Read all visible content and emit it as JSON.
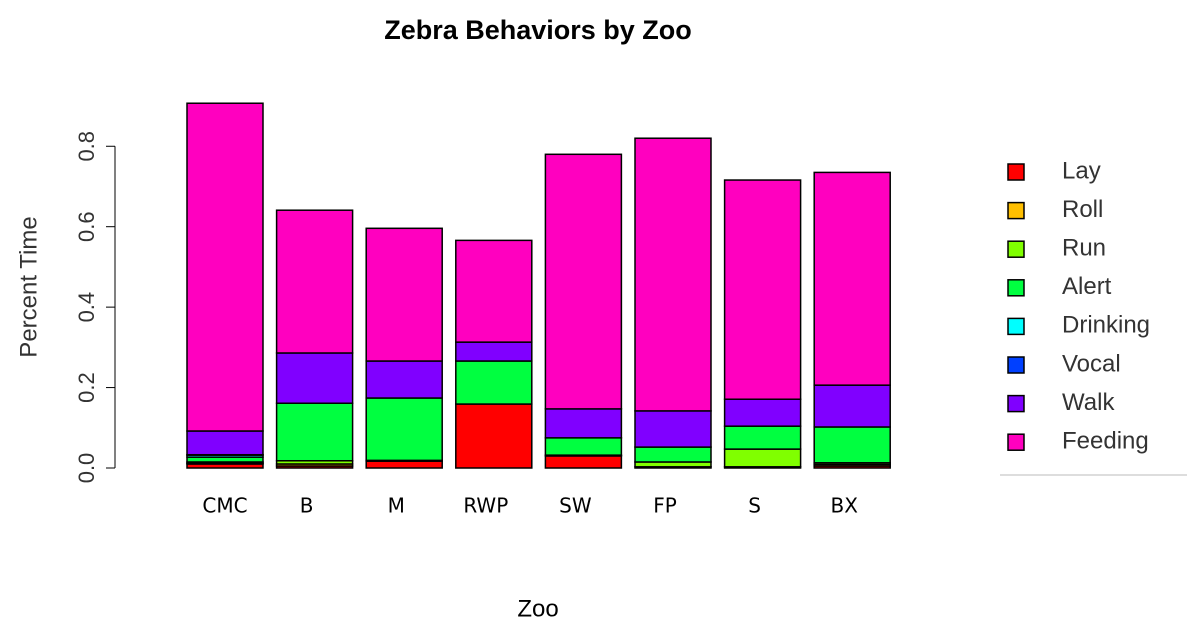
{
  "chart_data": {
    "type": "stacked_bar",
    "title": "Zebra Behaviors by Zoo",
    "x_label": "Zoo",
    "y_label": "Percent Time",
    "categories": [
      "CMC",
      "B",
      "M",
      "RWP",
      "SW",
      "FP",
      "S",
      "BX"
    ],
    "series": [
      {
        "name": "Lay",
        "color": "#ff0000",
        "values": [
          0.01,
          0.005,
          0.017,
          0.159,
          0.03,
          0.003,
          0.003,
          0.005
        ]
      },
      {
        "name": "Roll",
        "color": "#ffbf00",
        "values": [
          0.002,
          0.005,
          0.002,
          0,
          0.002,
          0,
          0,
          0.004
        ]
      },
      {
        "name": "Run",
        "color": "#80ff00",
        "values": [
          0.003,
          0.008,
          0,
          0,
          0,
          0.012,
          0.044,
          0.004
        ]
      },
      {
        "name": "Alert",
        "color": "#00ff40",
        "values": [
          0.012,
          0.143,
          0.155,
          0.107,
          0.043,
          0.037,
          0.057,
          0.089
        ]
      },
      {
        "name": "Drinking",
        "color": "#00ffff",
        "values": [
          0.005,
          0,
          0,
          0,
          0,
          0,
          0,
          0
        ]
      },
      {
        "name": "Vocal",
        "color": "#0040ff",
        "values": [
          0.001,
          0,
          0,
          0,
          0,
          0,
          0,
          0
        ]
      },
      {
        "name": "Walk",
        "color": "#8000ff",
        "values": [
          0.059,
          0.125,
          0.092,
          0.047,
          0.072,
          0.09,
          0.067,
          0.104
        ]
      },
      {
        "name": "Feeding",
        "color": "#ff00bf",
        "values": [
          0.815,
          0.355,
          0.33,
          0.253,
          0.633,
          0.678,
          0.545,
          0.529
        ]
      }
    ],
    "ylim": [
      0,
      0.92
    ],
    "yticks": [
      {
        "value": 0,
        "label": "0.0"
      },
      0.2,
      0.4,
      0.6,
      0.8
    ],
    "legend": "right"
  }
}
